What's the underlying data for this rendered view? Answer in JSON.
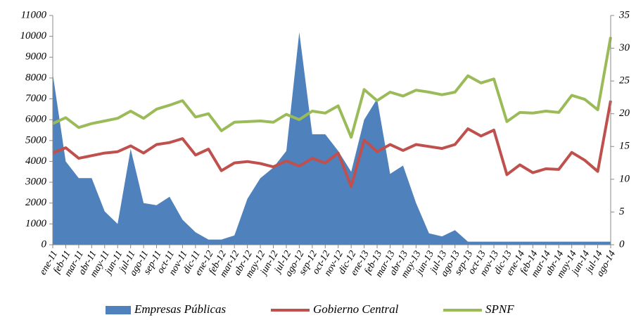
{
  "chart_data": {
    "type": "area_line",
    "categories": [
      "ene-11",
      "feb-11",
      "mar-11",
      "abr-11",
      "may-11",
      "jun-11",
      "jul-11",
      "ago-11",
      "sep-11",
      "oct-11",
      "nov-11",
      "dic-11",
      "ene-12",
      "feb-12",
      "mar-12",
      "abr-12",
      "may-12",
      "jun-12",
      "jul-12",
      "ago-12",
      "sep-12",
      "oct-12",
      "nov-12",
      "dic-12",
      "ene-13",
      "feb-13",
      "mar-13",
      "abr-13",
      "may-13",
      "jun-13",
      "jul-13",
      "ago-13",
      "sep-13",
      "oct-13",
      "nov-13",
      "dic-13",
      "ene-14",
      "feb-14",
      "mar-14",
      "abr-14",
      "may-14",
      "jun-14",
      "jul-14",
      "ago-14"
    ],
    "series": [
      {
        "name": "Empresas Públicas",
        "color": "#4f81bd",
        "kind": "area",
        "values": [
          8200,
          4000,
          3200,
          3200,
          1600,
          1000,
          4600,
          2000,
          1900,
          2300,
          1200,
          600,
          250,
          250,
          450,
          2200,
          3200,
          3700,
          4500,
          10200,
          5300,
          5300,
          4500,
          3500,
          6000,
          7000,
          3400,
          3800,
          2000,
          550,
          400,
          700,
          150,
          150,
          150,
          150,
          150,
          150,
          150,
          150,
          150,
          150,
          150,
          150
        ]
      },
      {
        "name": "Gobierno Central",
        "color": "#c0504d",
        "kind": "line",
        "axis": "y2",
        "values": [
          14.0,
          14.8,
          13.2,
          13.6,
          14.0,
          14.2,
          15.1,
          14.0,
          15.3,
          15.6,
          16.2,
          13.7,
          14.6,
          11.3,
          12.5,
          12.7,
          12.4,
          11.9,
          12.8,
          12.0,
          13.2,
          12.5,
          14.0,
          8.9,
          16.0,
          14.2,
          15.3,
          14.4,
          15.3,
          15.0,
          14.7,
          15.3,
          17.7,
          16.6,
          17.5,
          10.7,
          12.2,
          11.0,
          11.6,
          11.5,
          14.1,
          12.9,
          11.2,
          22.0
        ]
      },
      {
        "name": "SPNF",
        "color": "#9bbb59",
        "kind": "line",
        "axis": "y2",
        "values": [
          18.5,
          19.4,
          17.9,
          18.5,
          18.9,
          19.3,
          20.4,
          19.3,
          20.7,
          21.3,
          22.0,
          19.5,
          20.0,
          17.4,
          18.7,
          18.8,
          18.9,
          18.7,
          19.9,
          19.1,
          20.4,
          20.1,
          21.2,
          16.4,
          23.7,
          22.0,
          23.3,
          22.7,
          23.6,
          23.3,
          22.9,
          23.3,
          25.8,
          24.7,
          25.3,
          18.8,
          20.2,
          20.1,
          20.4,
          20.2,
          22.8,
          22.2,
          20.6,
          31.7
        ]
      }
    ],
    "ylim": [
      0,
      11000
    ],
    "yticks": [
      0,
      1000,
      2000,
      3000,
      4000,
      5000,
      6000,
      7000,
      8000,
      9000,
      10000,
      11000
    ],
    "y2lim": [
      0,
      35
    ],
    "y2ticks": [
      0,
      5,
      10,
      15,
      20,
      25,
      30,
      35
    ],
    "legend": "bottom"
  }
}
